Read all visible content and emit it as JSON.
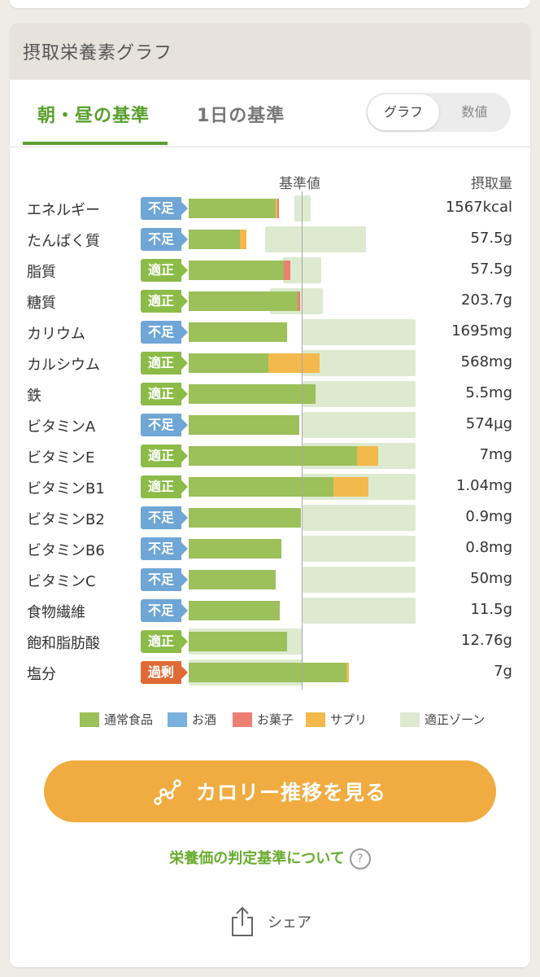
{
  "header": {
    "title": "摂取栄養素グラフ"
  },
  "tabs": [
    {
      "label": "朝・昼の基準"
    },
    {
      "label": "1日の基準"
    }
  ],
  "view_toggle": {
    "graph_label": "グラフ",
    "value_label": "数値"
  },
  "chart": {
    "ref_label": "基準値",
    "amount_label": "摂取量",
    "rows": [
      {
        "name": "エネルギー",
        "badge": "不足",
        "value": "1567kcal"
      },
      {
        "name": "たんぱく質",
        "badge": "不足",
        "value": "57.5g"
      },
      {
        "name": "脂質",
        "badge": "適正",
        "value": "57.5g"
      },
      {
        "name": "糖質",
        "badge": "適正",
        "value": "203.7g"
      },
      {
        "name": "カリウム",
        "badge": "不足",
        "value": "1695mg"
      },
      {
        "name": "カルシウム",
        "badge": "適正",
        "value": "568mg"
      },
      {
        "name": "鉄",
        "badge": "適正",
        "value": "5.5mg"
      },
      {
        "name": "ビタミンA",
        "badge": "不足",
        "value": "574µg"
      },
      {
        "name": "ビタミンE",
        "badge": "適正",
        "value": "7mg"
      },
      {
        "name": "ビタミンB1",
        "badge": "適正",
        "value": "1.04mg"
      },
      {
        "name": "ビタミンB2",
        "badge": "不足",
        "value": "0.9mg"
      },
      {
        "name": "ビタミンB6",
        "badge": "不足",
        "value": "0.8mg"
      },
      {
        "name": "ビタミンC",
        "badge": "不足",
        "value": "50mg"
      },
      {
        "name": "食物繊維",
        "badge": "不足",
        "value": "11.5g"
      },
      {
        "name": "飽和脂肪酸",
        "badge": "適正",
        "value": "12.76g"
      },
      {
        "name": "塩分",
        "badge": "過剰",
        "value": "7g"
      }
    ]
  },
  "legend": [
    {
      "label": "通常食品",
      "color": "#9cc05a"
    },
    {
      "label": "お酒",
      "color": "#7bb1dd"
    },
    {
      "label": "お菓子",
      "color": "#ec7f72"
    },
    {
      "label": "サプリ",
      "color": "#f3b94d"
    },
    {
      "label": "適正ゾーン",
      "color": "#ddead0"
    }
  ],
  "cta": {
    "label": "カロリー推移を見る"
  },
  "criteria_link": {
    "label": "栄養価の判定基準について",
    "help": "?"
  },
  "share": {
    "label": "シェア"
  },
  "colors": {
    "accent_green": "#5aa02c",
    "badge_short": "#6fa6d6",
    "badge_ok": "#8cbb48",
    "badge_over": "#e06a36",
    "cta_orange": "#f0ac40"
  }
}
